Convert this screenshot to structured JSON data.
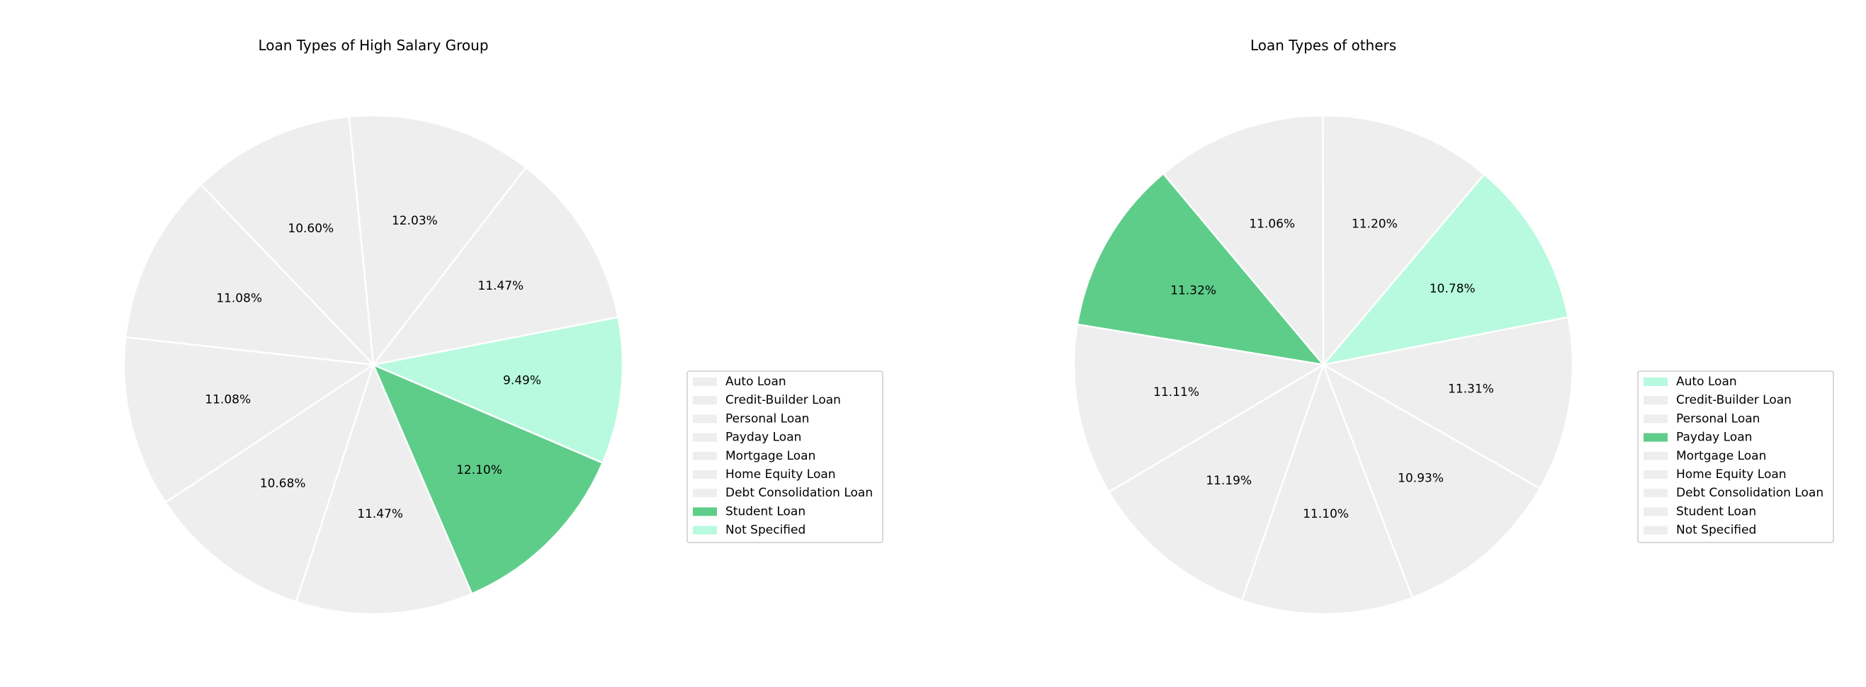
{
  "chart_data": [
    {
      "type": "pie",
      "title": "Loan Types of High Salary Group",
      "start_angle_deg": 11.0,
      "direction": "counterclockwise",
      "grid": false,
      "legend_position": "right",
      "slices": [
        {
          "label": "Auto Loan",
          "value": 11.47,
          "label_text": "11.47%",
          "color": "#eeeeee"
        },
        {
          "label": "Credit-Builder Loan",
          "value": 12.03,
          "label_text": "12.03%",
          "color": "#eeeeee"
        },
        {
          "label": "Personal Loan",
          "value": 10.6,
          "label_text": "10.60%",
          "color": "#eeeeee"
        },
        {
          "label": "Payday Loan",
          "value": 11.08,
          "label_text": "11.08%",
          "color": "#eeeeee"
        },
        {
          "label": "Mortgage Loan",
          "value": 11.08,
          "label_text": "11.08%",
          "color": "#eeeeee"
        },
        {
          "label": "Home Equity Loan",
          "value": 10.68,
          "label_text": "10.68%",
          "color": "#eeeeee"
        },
        {
          "label": "Debt Consolidation Loan",
          "value": 11.47,
          "label_text": "11.47%",
          "color": "#eeeeee"
        },
        {
          "label": "Student Loan",
          "value": 12.1,
          "label_text": "12.10%",
          "color": "#5ecd89"
        },
        {
          "label": "Not Specified",
          "value": 9.49,
          "label_text": "9.49%",
          "color": "#b8fadf"
        }
      ]
    },
    {
      "type": "pie",
      "title": "Loan Types of others",
      "start_angle_deg": 11.0,
      "direction": "counterclockwise",
      "grid": false,
      "legend_position": "right",
      "slices": [
        {
          "label": "Auto Loan",
          "value": 10.78,
          "label_text": "10.78%",
          "color": "#b8fadf"
        },
        {
          "label": "Credit-Builder Loan",
          "value": 11.2,
          "label_text": "11.20%",
          "color": "#eeeeee"
        },
        {
          "label": "Personal Loan",
          "value": 11.06,
          "label_text": "11.06%",
          "color": "#eeeeee"
        },
        {
          "label": "Payday Loan",
          "value": 11.32,
          "label_text": "11.32%",
          "color": "#5ecd89"
        },
        {
          "label": "Mortgage Loan",
          "value": 11.11,
          "label_text": "11.11%",
          "color": "#eeeeee"
        },
        {
          "label": "Home Equity Loan",
          "value": 11.19,
          "label_text": "11.19%",
          "color": "#eeeeee"
        },
        {
          "label": "Debt Consolidation Loan",
          "value": 11.1,
          "label_text": "11.10%",
          "color": "#eeeeee"
        },
        {
          "label": "Student Loan",
          "value": 10.93,
          "label_text": "10.93%",
          "color": "#eeeeee"
        },
        {
          "label": "Not Specified",
          "value": 11.31,
          "label_text": "11.31%",
          "color": "#eeeeee"
        }
      ]
    }
  ]
}
